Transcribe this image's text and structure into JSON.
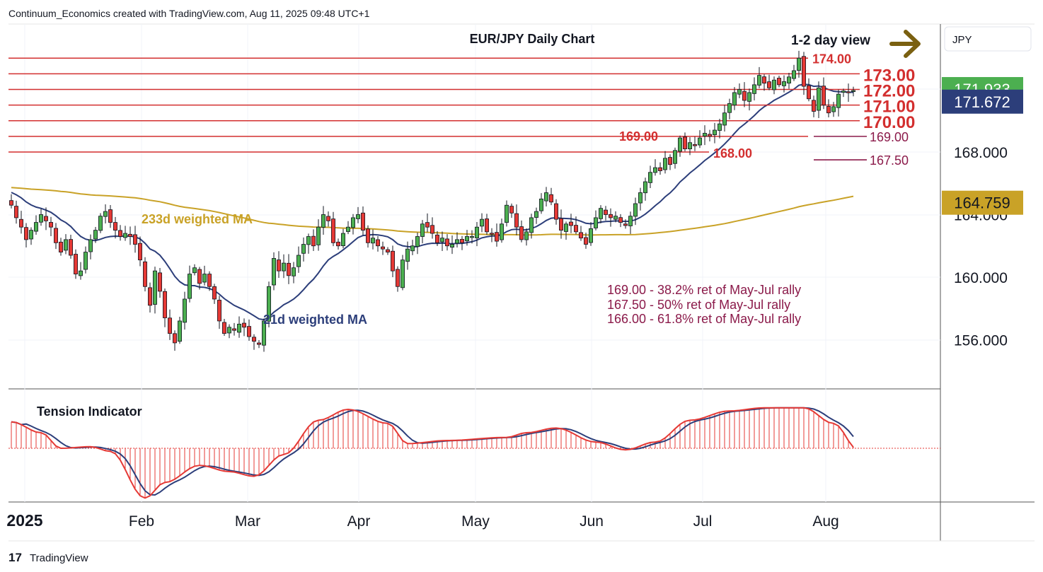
{
  "header": {
    "credit": "Continuum_Economics created with TradingView.com, Aug 11, 2025 09:48 UTC+1"
  },
  "footer": {
    "brand": "TradingView",
    "brand_mark": "17"
  },
  "chart_data": {
    "type": "candlestick",
    "title": "EUR/JPY Daily Chart",
    "view_label": "1-2 day view",
    "view_arrow": "right-arrow",
    "currency_box": "JPY",
    "y_ticks": [
      "168.000",
      "164.000",
      "160.000",
      "156.000"
    ],
    "y_tick_values": [
      168,
      164,
      160,
      156
    ],
    "price_badges": [
      {
        "label": "171.933",
        "value": 171.933,
        "color": "#4caf50"
      },
      {
        "label": "171.672",
        "value": 171.672,
        "color": "#2c3e7a"
      },
      {
        "label": "164.759",
        "value": 164.759,
        "color": "#c9a227"
      }
    ],
    "x_labels": [
      "2025",
      "Feb",
      "Mar",
      "Apr",
      "May",
      "Jun",
      "Jul",
      "Aug"
    ],
    "horizontal_levels": [
      {
        "value": 174,
        "label": "174.00"
      },
      {
        "value": 173,
        "label": "173.00"
      },
      {
        "value": 172,
        "label": "172.00"
      },
      {
        "value": 171,
        "label": "171.00"
      },
      {
        "value": 170,
        "label": "170.00"
      },
      {
        "value": 169,
        "label": "169.00"
      },
      {
        "value": 168,
        "label": "168.00"
      }
    ],
    "retracement_levels": [
      {
        "value": 169.0,
        "label": "169.00"
      },
      {
        "value": 167.5,
        "label": "167.50"
      }
    ],
    "annotations": [
      "169.00 - 38.2% ret of May-Jul rally",
      "167.50 - 50% ret of May-Jul rally",
      "166.00 - 61.8% ret of May-Jul rally"
    ],
    "ma_labels": {
      "ma233": "233d weighted MA",
      "ma21": "21d weighted MA"
    },
    "indicator_title": "Tension Indicator",
    "colors": {
      "up": "#4caf50",
      "down": "#e53935",
      "level": "#d32f2f",
      "retrace": "#8b1a4a",
      "ma21": "#2c3e7a",
      "ma233": "#c9a227",
      "arrow": "#7a6010"
    },
    "closes": [
      164.6,
      163.8,
      163.2,
      162.4,
      163.0,
      163.5,
      164.0,
      163.6,
      163.2,
      162.2,
      161.6,
      162.4,
      161.4,
      160.2,
      160.4,
      161.6,
      162.4,
      163.0,
      163.9,
      164.2,
      163.5,
      163.0,
      162.6,
      162.8,
      162.6,
      162.1,
      161.1,
      159.4,
      158.2,
      160.4,
      159.1,
      157.4,
      156.4,
      155.8,
      157.2,
      158.6,
      160.2,
      160.6,
      159.6,
      160.2,
      159.4,
      158.6,
      157.2,
      156.4,
      156.8,
      156.6,
      157.0,
      156.8,
      156.2,
      155.9,
      155.7,
      157.2,
      159.4,
      161.2,
      160.4,
      160.9,
      160.1,
      160.6,
      161.4,
      162.1,
      162.6,
      162.0,
      163.2,
      164.0,
      163.6,
      162.2,
      162.0,
      162.8,
      163.2,
      163.8,
      164.0,
      163.0,
      162.2,
      162.5,
      162.0,
      161.8,
      161.6,
      160.4,
      159.4,
      161.1,
      161.8,
      162.0,
      162.6,
      163.4,
      163.2,
      162.8,
      162.2,
      162.5,
      162.0,
      162.1,
      162.4,
      162.2,
      162.6,
      162.6,
      163.2,
      163.7,
      162.9,
      162.8,
      162.3,
      163.4,
      164.6,
      164.1,
      163.2,
      162.4,
      162.9,
      163.8,
      164.2,
      165.0,
      165.4,
      164.8,
      163.7,
      163.0,
      163.4,
      163.3,
      162.9,
      162.5,
      162.1,
      163.1,
      163.8,
      164.4,
      164.0,
      163.8,
      163.9,
      163.5,
      163.3,
      163.9,
      164.7,
      165.4,
      166.1,
      166.7,
      167.0,
      166.8,
      167.6,
      167.2,
      168.1,
      168.9,
      168.2,
      168.6,
      168.4,
      168.9,
      169.2,
      169.0,
      169.4,
      169.8,
      170.5,
      171.1,
      171.8,
      172.0,
      171.3,
      171.8,
      172.3,
      172.9,
      172.4,
      172.1,
      172.6,
      172.3,
      172.5,
      172.8,
      173.2,
      174.0,
      172.2,
      171.4,
      170.6,
      172.1,
      171.0,
      170.5,
      170.9,
      171.7,
      171.9,
      171.8,
      171.93
    ],
    "tension_start": 0.8,
    "tension_waypoints": [
      [
        0,
        0.85
      ],
      [
        6,
        0.5
      ],
      [
        10,
        0.0
      ],
      [
        16,
        0.05
      ],
      [
        20,
        -0.1
      ],
      [
        27,
        -1.6
      ],
      [
        31,
        -1.1
      ],
      [
        38,
        -0.55
      ],
      [
        44,
        -0.75
      ],
      [
        49,
        -0.9
      ],
      [
        55,
        -0.2
      ],
      [
        62,
        0.9
      ],
      [
        68,
        1.25
      ],
      [
        76,
        0.8
      ],
      [
        80,
        0.15
      ],
      [
        88,
        0.25
      ],
      [
        100,
        0.35
      ],
      [
        104,
        0.5
      ],
      [
        110,
        0.65
      ],
      [
        118,
        0.2
      ],
      [
        124,
        -0.05
      ],
      [
        130,
        0.2
      ],
      [
        137,
        0.9
      ],
      [
        145,
        1.2
      ],
      [
        152,
        1.3
      ],
      [
        160,
        1.3
      ],
      [
        166,
        0.8
      ],
      [
        171,
        -0.05
      ],
      [
        176,
        -0.05
      ]
    ]
  }
}
